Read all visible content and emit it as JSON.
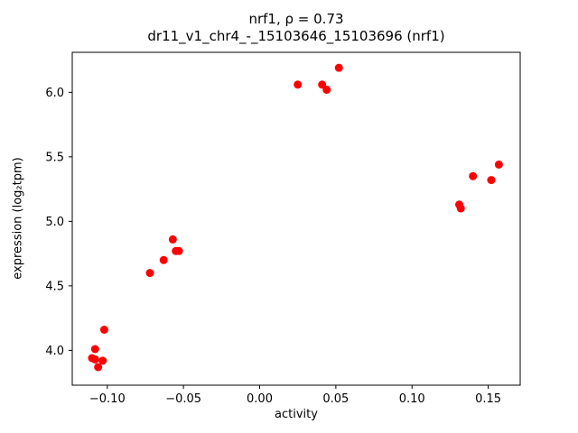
{
  "chart_data": {
    "type": "scatter",
    "title": "nrf1, ρ = 0.73",
    "subtitle": "dr11_v1_chr4_-_15103646_15103696 (nrf1)",
    "xlabel": "activity",
    "ylabel": "expression (log₂tpm)",
    "xlim": [
      -0.123,
      0.171
    ],
    "ylim": [
      3.73,
      6.31
    ],
    "xticks": {
      "values": [
        -0.1,
        -0.05,
        0.0,
        0.05,
        0.1,
        0.15
      ],
      "labels": [
        "−0.10",
        "−0.05",
        "0.00",
        "0.05",
        "0.10",
        "0.15"
      ]
    },
    "yticks": {
      "values": [
        4.0,
        4.5,
        5.0,
        5.5,
        6.0
      ],
      "labels": [
        "4.0",
        "4.5",
        "5.0",
        "5.5",
        "6.0"
      ]
    },
    "marker_color": "#ff0000",
    "axis_color": "#000000",
    "legend": "off",
    "grid": "off",
    "points": [
      [
        -0.108,
        4.01
      ],
      [
        -0.11,
        3.94
      ],
      [
        -0.108,
        3.93
      ],
      [
        -0.106,
        3.87
      ],
      [
        -0.103,
        3.92
      ],
      [
        -0.102,
        4.16
      ],
      [
        -0.072,
        4.6
      ],
      [
        -0.063,
        4.7
      ],
      [
        -0.057,
        4.86
      ],
      [
        -0.055,
        4.77
      ],
      [
        -0.053,
        4.77
      ],
      [
        0.025,
        6.06
      ],
      [
        0.041,
        6.06
      ],
      [
        0.044,
        6.02
      ],
      [
        0.052,
        6.19
      ],
      [
        0.131,
        5.13
      ],
      [
        0.132,
        5.1
      ],
      [
        0.14,
        5.35
      ],
      [
        0.152,
        5.32
      ],
      [
        0.157,
        5.44
      ]
    ]
  }
}
